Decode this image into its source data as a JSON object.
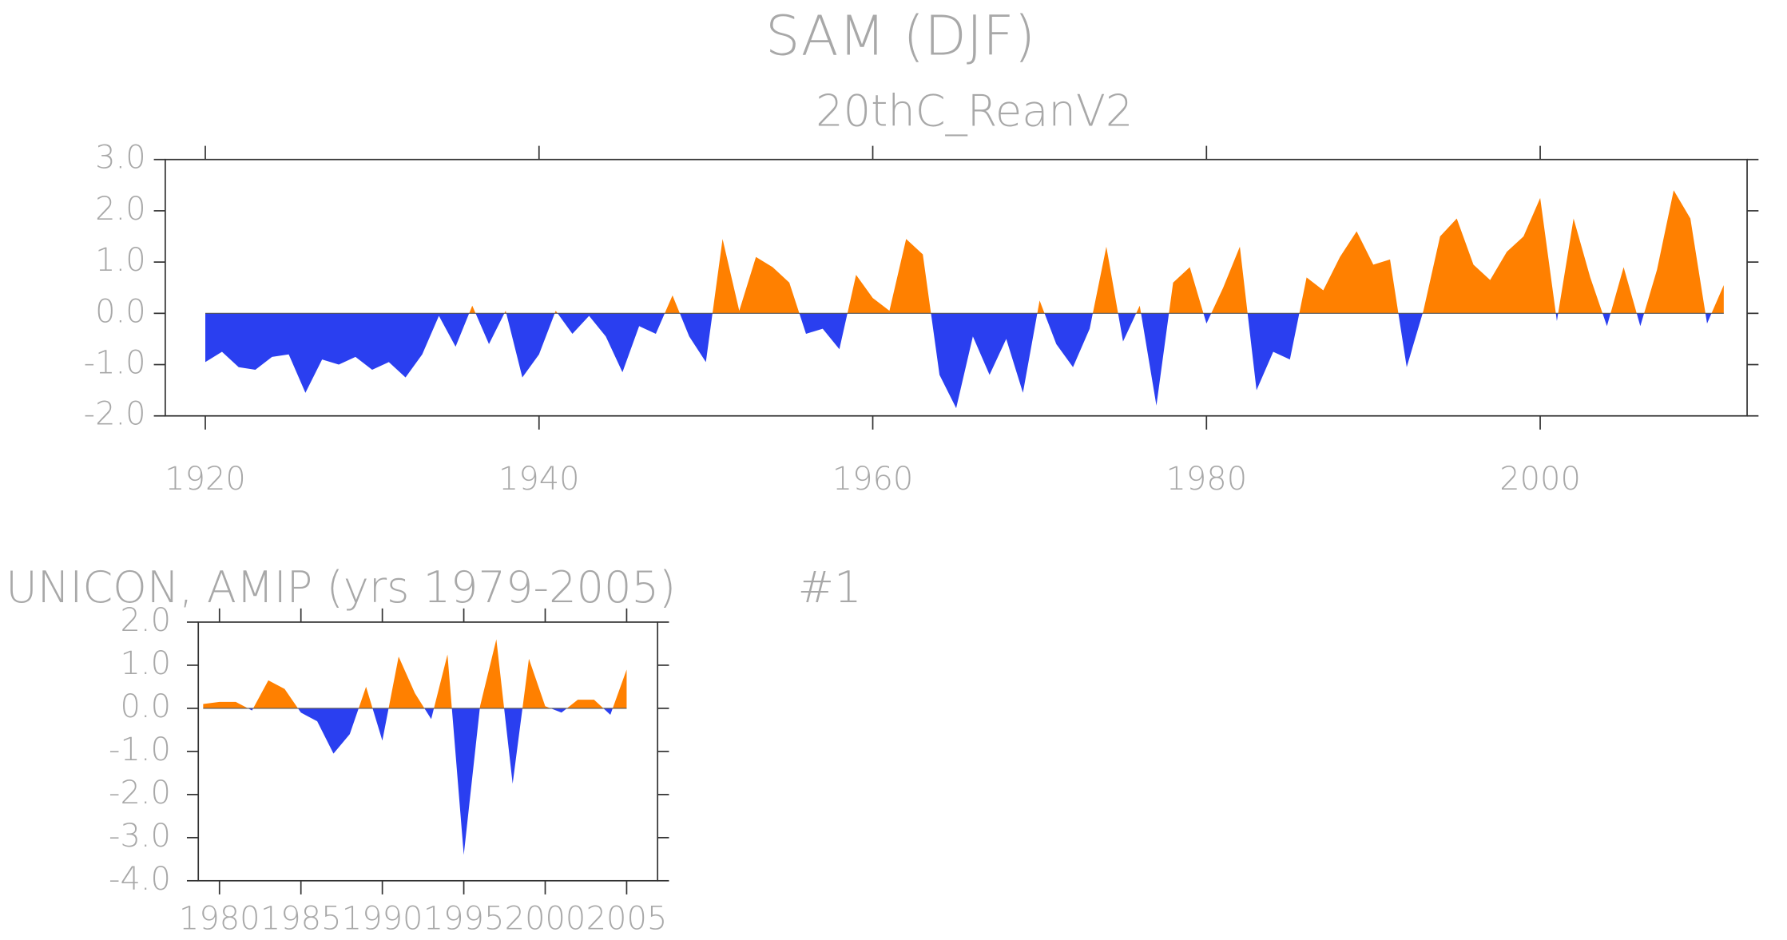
{
  "chart_data": [
    {
      "type": "area",
      "title": "SAM (DJF)",
      "subtitle": "20thC_ReanV2",
      "x": [
        1920,
        1921,
        1922,
        1923,
        1924,
        1925,
        1926,
        1927,
        1928,
        1929,
        1930,
        1931,
        1932,
        1933,
        1934,
        1935,
        1936,
        1937,
        1938,
        1939,
        1940,
        1941,
        1942,
        1943,
        1944,
        1945,
        1946,
        1947,
        1948,
        1949,
        1950,
        1951,
        1952,
        1953,
        1954,
        1955,
        1956,
        1957,
        1958,
        1959,
        1960,
        1961,
        1962,
        1963,
        1964,
        1965,
        1966,
        1967,
        1968,
        1969,
        1970,
        1971,
        1972,
        1973,
        1974,
        1975,
        1976,
        1977,
        1978,
        1979,
        1980,
        1981,
        1982,
        1983,
        1984,
        1985,
        1986,
        1987,
        1988,
        1989,
        1990,
        1991,
        1992,
        1993,
        1994,
        1995,
        1996,
        1997,
        1998,
        1999,
        2000,
        2001,
        2002,
        2003,
        2004,
        2005,
        2006,
        2007,
        2008,
        2009,
        2010,
        2011
      ],
      "values": [
        -0.95,
        -0.75,
        -1.05,
        -1.1,
        -0.85,
        -0.8,
        -1.55,
        -0.9,
        -1.0,
        -0.85,
        -1.1,
        -0.95,
        -1.25,
        -0.8,
        -0.05,
        -0.65,
        0.15,
        -0.6,
        0.05,
        -1.25,
        -0.8,
        0.05,
        -0.4,
        -0.05,
        -0.45,
        -1.15,
        -0.25,
        -0.4,
        0.35,
        -0.45,
        -0.95,
        1.45,
        0.05,
        1.1,
        0.9,
        0.6,
        -0.4,
        -0.3,
        -0.7,
        0.75,
        0.3,
        0.05,
        1.45,
        1.15,
        -1.2,
        -1.85,
        -0.45,
        -1.2,
        -0.5,
        -1.55,
        0.25,
        -0.6,
        -1.05,
        -0.3,
        1.3,
        -0.55,
        0.15,
        -1.8,
        0.6,
        0.9,
        -0.2,
        0.5,
        1.3,
        -1.5,
        -0.75,
        -0.9,
        0.7,
        0.45,
        1.1,
        1.6,
        0.95,
        1.05,
        -1.05,
        0.05,
        1.5,
        1.85,
        0.95,
        0.65,
        1.2,
        1.5,
        2.25,
        -0.15,
        1.85,
        0.7,
        -0.25,
        0.9,
        -0.25,
        0.85,
        2.4,
        1.85,
        -0.2,
        0.55
      ],
      "above_color": "#ff8000",
      "below_color": "#2a3ff0",
      "xlim": [
        1917.6,
        2012.4
      ],
      "ylim": [
        -2.0,
        3.0
      ],
      "xticks": [
        1920,
        1940,
        1960,
        1980,
        2000
      ],
      "yticks": [
        {
          "value": -2,
          "label": "-2.0"
        },
        {
          "value": -1,
          "label": "-1.0"
        },
        {
          "value": 0,
          "label": "0.0"
        },
        {
          "value": 1,
          "label": "1.0"
        },
        {
          "value": 2,
          "label": "2.0"
        },
        {
          "value": 3,
          "label": "3.0"
        }
      ]
    },
    {
      "type": "area",
      "title": "UNICON, AMIP (yrs 1979-2005)",
      "annotation": "#1",
      "x": [
        1979,
        1980,
        1981,
        1982,
        1983,
        1984,
        1985,
        1986,
        1987,
        1988,
        1989,
        1990,
        1991,
        1992,
        1993,
        1994,
        1995,
        1996,
        1997,
        1998,
        1999,
        2000,
        2001,
        2002,
        2003,
        2004,
        2005
      ],
      "values": [
        0.1,
        0.15,
        0.15,
        -0.05,
        0.65,
        0.45,
        -0.1,
        -0.3,
        -1.05,
        -0.6,
        0.5,
        -0.75,
        1.2,
        0.35,
        -0.25,
        1.25,
        -3.4,
        0.05,
        1.6,
        -1.75,
        1.15,
        0.05,
        -0.1,
        0.2,
        0.2,
        -0.15,
        0.9
      ],
      "above_color": "#ff8000",
      "below_color": "#2a3ff0",
      "xlim": [
        1978.7,
        2006.9
      ],
      "ylim": [
        -4.0,
        2.0
      ],
      "xticks": [
        1980,
        1985,
        1990,
        1995,
        2000,
        2005
      ],
      "yticks": [
        {
          "value": -4,
          "label": "-4.0"
        },
        {
          "value": -3,
          "label": "-3.0"
        },
        {
          "value": -2,
          "label": "-2.0"
        },
        {
          "value": -1,
          "label": "-1.0"
        },
        {
          "value": 0,
          "label": "0.0"
        },
        {
          "value": 1,
          "label": "1.0"
        },
        {
          "value": 2,
          "label": "2.0"
        }
      ]
    }
  ]
}
